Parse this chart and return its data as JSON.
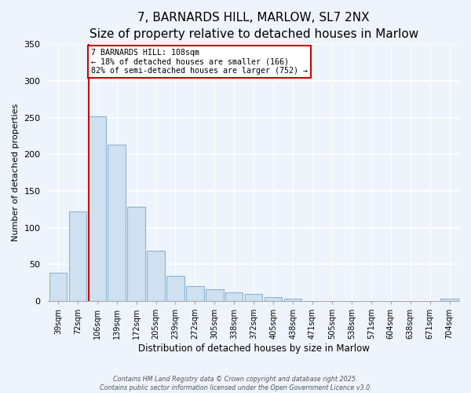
{
  "title": "7, BARNARDS HILL, MARLOW, SL7 2NX",
  "subtitle": "Size of property relative to detached houses in Marlow",
  "xlabel": "Distribution of detached houses by size in Marlow",
  "ylabel": "Number of detached properties",
  "bar_labels": [
    "39sqm",
    "72sqm",
    "106sqm",
    "139sqm",
    "172sqm",
    "205sqm",
    "239sqm",
    "272sqm",
    "305sqm",
    "338sqm",
    "372sqm",
    "405sqm",
    "438sqm",
    "471sqm",
    "505sqm",
    "538sqm",
    "571sqm",
    "604sqm",
    "638sqm",
    "671sqm",
    "704sqm"
  ],
  "bar_values": [
    38,
    122,
    252,
    213,
    128,
    68,
    34,
    20,
    16,
    12,
    10,
    5,
    3,
    0,
    0,
    0,
    0,
    0,
    0,
    0,
    3
  ],
  "bar_color": "#cfe0f0",
  "bar_edge_color": "#8ab4d4",
  "vline_x_pos": 1.575,
  "vline_color": "#cc0000",
  "annotation_line1": "7 BARNARDS HILL: 108sqm",
  "annotation_line2": "← 18% of detached houses are smaller (166)",
  "annotation_line3": "82% of semi-detached houses are larger (752) →",
  "annotation_box_color": "#ffffff",
  "annotation_box_edge": "#cc0000",
  "ylim": [
    0,
    350
  ],
  "yticks": [
    0,
    50,
    100,
    150,
    200,
    250,
    300,
    350
  ],
  "footnote1": "Contains HM Land Registry data © Crown copyright and database right 2025.",
  "footnote2": "Contains public sector information licensed under the Open Government Licence v3.0.",
  "background_color": "#eef4fb",
  "grid_color": "#ffffff",
  "title_fontsize": 11,
  "subtitle_fontsize": 9.5,
  "ylabel_fontsize": 8,
  "xlabel_fontsize": 8.5
}
